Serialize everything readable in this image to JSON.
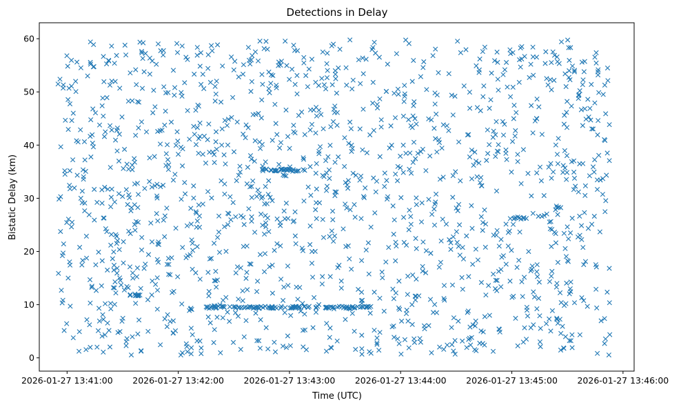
{
  "chart_data": {
    "type": "scatter",
    "title": "Detections in Delay",
    "xlabel": "Time (UTC)",
    "ylabel": "Bistatic Delay (km)",
    "marker": "x",
    "color": "#1f77b4",
    "grid": false,
    "legend": "none",
    "xlim": [
      "2026-01-27 13:40:45",
      "2026-01-27 13:46:06"
    ],
    "ylim": [
      -2.5,
      63
    ],
    "x_ticks": [
      "2026-01-27 13:41:00",
      "2026-01-27 13:42:00",
      "2026-01-27 13:43:00",
      "2026-01-27 13:44:00",
      "2026-01-27 13:45:00",
      "2026-01-27 13:46:00"
    ],
    "y_ticks": [
      0,
      10,
      20,
      30,
      40,
      50,
      60
    ],
    "points_note": "~1500 detections uniformly spread in time 13:40:55–13:45:53 and delay 0.5–59.8 km",
    "clusters": [
      {
        "t_start": "2026-01-27 13:42:44",
        "t_end": "2026-01-27 13:43:10",
        "delay": 35.3
      },
      {
        "t_start": "2026-01-27 13:42:15",
        "t_end": "2026-01-27 13:43:45",
        "delay": 9.5
      },
      {
        "t_start": "2026-01-27 13:44:59",
        "t_end": "2026-01-27 13:45:08",
        "delay": 26.3
      },
      {
        "t_start": "2026-01-27 13:41:33",
        "t_end": "2026-01-27 13:41:42",
        "delay": 11.8
      }
    ]
  }
}
